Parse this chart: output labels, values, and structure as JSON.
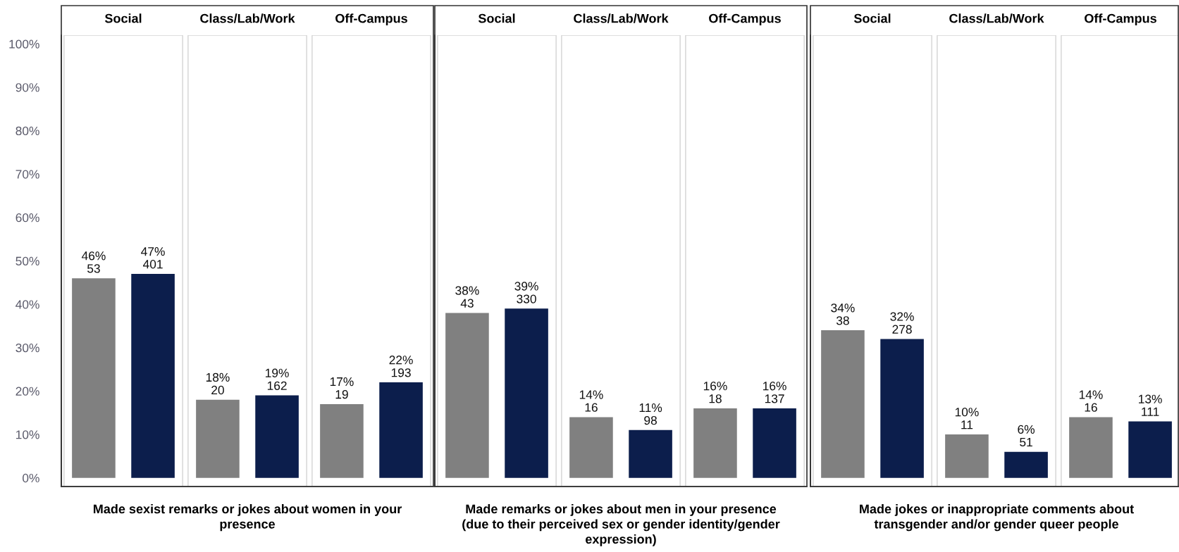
{
  "chart_data": [
    {
      "type": "bar",
      "categories": [
        "Social",
        "Class/Lab/Work",
        "Off-Campus"
      ],
      "xlabel": "Made sexist remarks or jokes about women in your\npresence",
      "ylim": [
        -2,
        102
      ],
      "yticks": [
        {
          "value": 0,
          "label": "0%"
        },
        {
          "value": 10,
          "label": "10%"
        },
        {
          "value": 20,
          "label": "20%"
        },
        {
          "value": 30,
          "label": "30%"
        },
        {
          "value": 40,
          "label": "40%"
        },
        {
          "value": 50,
          "label": "50%"
        },
        {
          "value": 60,
          "label": "60%"
        },
        {
          "value": 70,
          "label": "70%"
        },
        {
          "value": 80,
          "label": "80%"
        },
        {
          "value": 90,
          "label": "90%"
        },
        {
          "value": 100,
          "label": "100%"
        }
      ],
      "series": [
        {
          "color": "#808080",
          "values": [
            46,
            18,
            17
          ],
          "value_labels": [
            "46%\n53",
            "18%\n20",
            "17%\n19"
          ]
        },
        {
          "color": "#0c1e4c",
          "values": [
            47,
            19,
            22
          ],
          "value_labels": [
            "47%\n401",
            "19%\n162",
            "22%\n193"
          ]
        }
      ]
    },
    {
      "type": "bar",
      "categories": [
        "Social",
        "Class/Lab/Work",
        "Off-Campus"
      ],
      "xlabel": "Made remarks or jokes about men in your presence\n(due to their perceived sex or gender identity/gender\nexpression)",
      "ylim": [
        -2,
        102
      ],
      "tick_labels": "x",
      "series": [
        {
          "color": "#808080",
          "values": [
            38,
            14,
            16
          ],
          "value_labels": [
            "38%\n43",
            "14%\n16",
            "16%\n18"
          ]
        },
        {
          "color": "#0c1e4c",
          "values": [
            39,
            11,
            16
          ],
          "value_labels": [
            "39%\n330",
            "11%\n98",
            "16%\n137"
          ]
        }
      ]
    },
    {
      "type": "bar",
      "categories": [
        "Social",
        "Class/Lab/Work",
        "Off-Campus"
      ],
      "xlabel": "Made jokes or inappropriate comments about\ntransgender and/or gender queer people",
      "ylim": [
        -2,
        102
      ],
      "tick_labels": "x",
      "series": [
        {
          "color": "#808080",
          "values": [
            34,
            10,
            14
          ],
          "value_labels": [
            "34%\n38",
            "10%\n11",
            "14%\n16"
          ]
        },
        {
          "color": "#0c1e4c",
          "values": [
            32,
            6,
            13
          ],
          "value_labels": [
            "32%\n278",
            "6%\n51",
            "13%\n111"
          ]
        }
      ]
    }
  ]
}
